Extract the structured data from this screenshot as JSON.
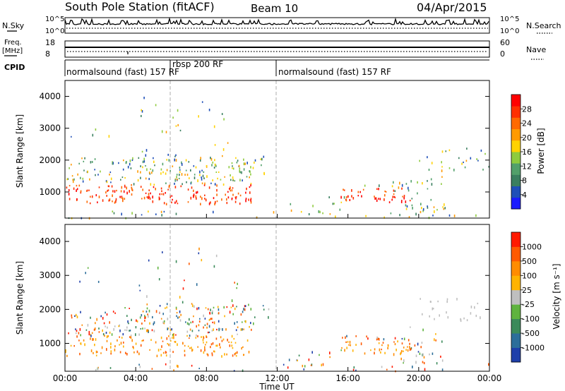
{
  "header": {
    "station": "South Pole Station (fitACF)",
    "beam": "Beam 10",
    "date": "04/Apr/2015"
  },
  "top_panel": {
    "left_label": "N.Sky",
    "right_label": "N.Search",
    "left_ticks": [
      "10^5",
      "10^0"
    ],
    "right_ticks": [
      "10^5",
      "10^0"
    ]
  },
  "freq_panel": {
    "left_label_1": "Freq.",
    "left_label_2": "[MHz]",
    "right_label": "Nave",
    "left_ticks": [
      "18",
      "8"
    ],
    "right_ticks": [
      "60",
      "0"
    ]
  },
  "cpid": {
    "label": "CPID",
    "segments": [
      {
        "text": "normalsound (fast) 157 RF",
        "start_h": 0
      },
      {
        "text": "rbsp 200 RF",
        "start_h": 6.0
      },
      {
        "text": "normalsound (fast) 157 RF",
        "start_h": 12.0
      }
    ]
  },
  "power_colorbar": {
    "label": "Power [dB]",
    "ticks": [
      "4",
      "8",
      "12",
      "16",
      "20",
      "24",
      "28"
    ],
    "colors": [
      "#1a1aff",
      "#1f4fb8",
      "#3a7f5f",
      "#52a06a",
      "#8ecb3e",
      "#ffd200",
      "#ff9a00",
      "#ff6a00",
      "#ff3000",
      "#ff0000"
    ]
  },
  "velocity_colorbar": {
    "label": "Velocity [m s⁻¹]",
    "ticks": [
      "1000",
      "500",
      "100",
      "25",
      "-25",
      "-100",
      "-500",
      "-1000"
    ],
    "colors": [
      "#1e3faa",
      "#2c6e9a",
      "#3b8a5a",
      "#5fb33e",
      "#bfbfbf",
      "#ffb300",
      "#ff8c00",
      "#ff5a00",
      "#ff1a00"
    ]
  },
  "chart_data": {
    "type": "heatmap",
    "xlabel": "Time UT",
    "ylabel": "Slant Range [km]",
    "x_ticks": [
      "00:00",
      "04:00",
      "08:00",
      "12:00",
      "16:00",
      "20:00",
      "00:00"
    ],
    "y_ticks": [
      "1000",
      "2000",
      "3000",
      "4000"
    ],
    "xlim": [
      0,
      24
    ],
    "ylim": [
      180,
      4500
    ],
    "grid": false,
    "vertical_dividers_h": [
      6.0,
      12.0
    ]
  }
}
